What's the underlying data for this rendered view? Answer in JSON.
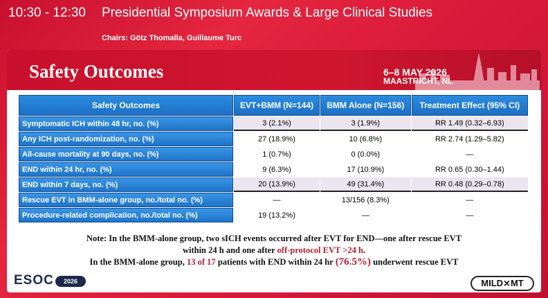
{
  "header": {
    "time": "10:30 - 12:30",
    "title": "Presidential Symposium Awards & Large Clinical Studies",
    "chairs": "Chairs: Götz Thomalla, Guillaume Turc"
  },
  "slide": {
    "title": "Safety Outcomes",
    "event_date": "6–8 MAY 2026",
    "event_city": "MAASTRICHT, NL",
    "table": {
      "headers": [
        "Safety Outcomes",
        "EVT+BMM (N=144)",
        "BMM Alone (N=156)",
        "Treatment Effect (95% CI)"
      ],
      "rows": [
        {
          "label": "Symptomatic ICH within 48 hr, no. (%)",
          "evt": "3 (2.1%)",
          "bmm": "3 (1.9%)",
          "effect": "RR 1.49 (0.32–6.93)"
        },
        {
          "label": "Any ICH post-randomization, no. (%)",
          "evt": "27 (18.9%)",
          "bmm": "10 (6.8%)",
          "effect": "RR 2.74 (1.29–5.82)"
        },
        {
          "label": "All-cause mortality at 90 days, no. (%)",
          "evt": "1 (0.7%)",
          "bmm": "0 (0.0%)",
          "effect": "—"
        },
        {
          "label": "END within 24 hr, no. (%)",
          "evt": "9 (6.3%)",
          "bmm": "17 (10.9%)",
          "effect": "RR 0.65 (0.30–1.44)"
        },
        {
          "label": "END within 7 days, no. (%)",
          "evt": "20 (13.9%)",
          "bmm": "49 (31.4%)",
          "effect": "RR 0.48 (0.29–0.78)"
        },
        {
          "label": "Rescue EVT in BMM-alone group, no./total no. (%)",
          "evt": "—",
          "bmm": "13/156 (8.3%)",
          "effect": "—"
        },
        {
          "label": "Procedure-related complication, no./total no. (%)",
          "evt": "19 (13.2%)",
          "bmm": "—",
          "effect": "—"
        }
      ]
    },
    "note": {
      "line1": "Note: In the BMM-alone group, two sICH events occurred after EVT for END—one after rescue EVT",
      "line2a": "within 24 h and one after ",
      "line2b": "off-protocol EVT >24 h",
      "line2c": ".",
      "line3a": "In the BMM-alone group, ",
      "line3b": "13 of 17",
      "line3c": " patients with END within 24 hr ",
      "line3d": "(76.5%)",
      "line3e": " underwent rescue EVT"
    },
    "logo_left": "ESOC",
    "logo_left_year": "2026",
    "logo_right": "MILD⨯MT"
  }
}
